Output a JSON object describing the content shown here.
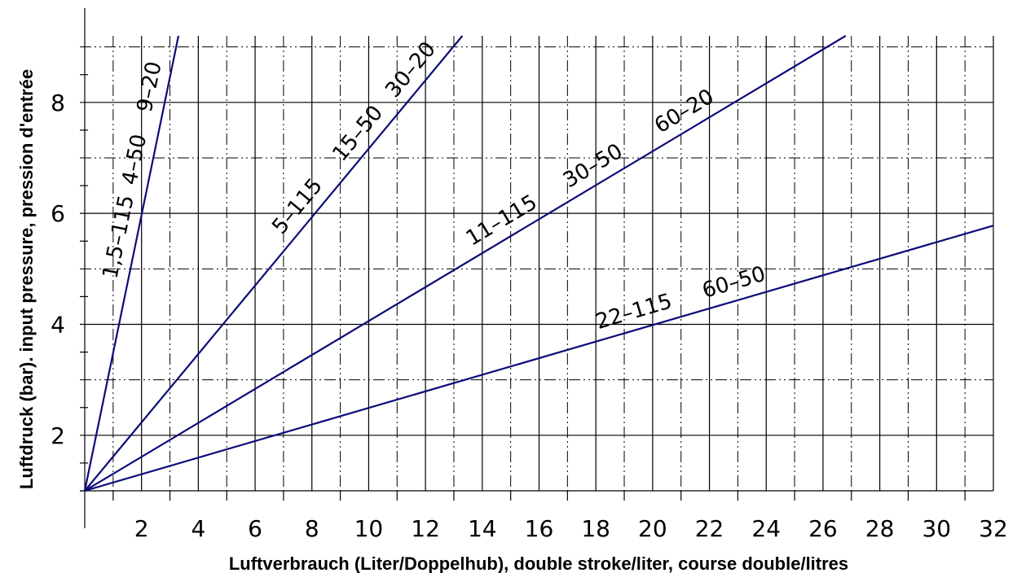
{
  "chart_data": {
    "type": "line",
    "xlabel": "Luftverbrauch (Liter/Doppelhub), double stroke/liter, course double/litres",
    "ylabel": "Luftdruck (bar). input pressure, pression d'entrée",
    "xlim": [
      0,
      32
    ],
    "ylim": [
      1,
      9.2
    ],
    "xticks": [
      2,
      4,
      6,
      8,
      10,
      12,
      14,
      16,
      18,
      20,
      22,
      24,
      26,
      28,
      30,
      32
    ],
    "yticks": [
      2,
      4,
      6,
      8
    ],
    "grid": true,
    "series": [
      {
        "x": [
          0,
          3.3
        ],
        "y": [
          1,
          9.2
        ],
        "labels": [
          "1,5–115",
          "4–50",
          "9–20"
        ]
      },
      {
        "x": [
          0,
          13.3
        ],
        "y": [
          1,
          9.2
        ],
        "labels": [
          "5–115",
          "15–50",
          "30–20"
        ]
      },
      {
        "x": [
          0,
          26.8
        ],
        "y": [
          1,
          9.2
        ],
        "labels": [
          "11–115",
          "30–50",
          "60–20"
        ]
      },
      {
        "x": [
          0,
          32
        ],
        "y": [
          1,
          5.78
        ],
        "labels": [
          "22–115",
          "60–50"
        ]
      }
    ]
  }
}
